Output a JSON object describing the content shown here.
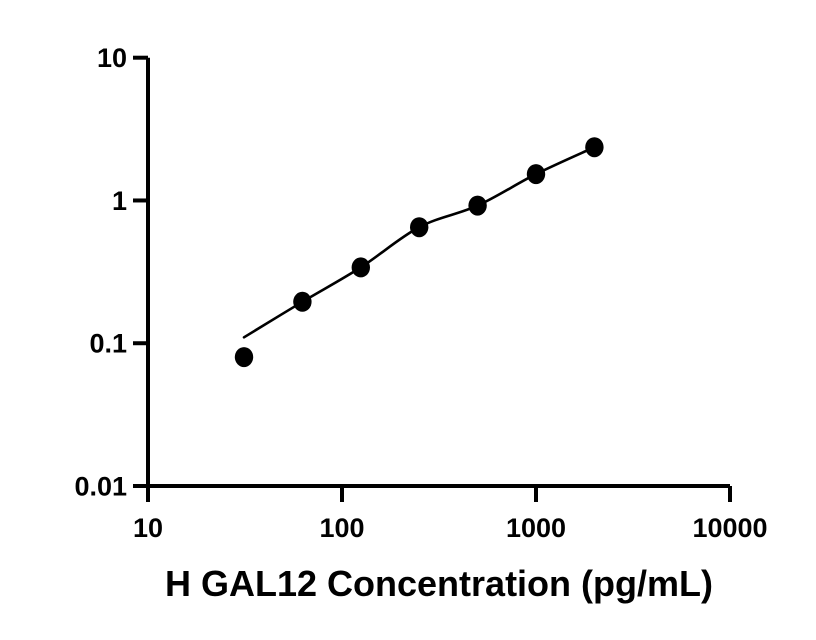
{
  "chart_data": {
    "type": "scatter",
    "title": "",
    "xlabel": "H GAL12 Concentration (pg/mL)",
    "ylabel": "",
    "x_scale": "log",
    "y_scale": "log",
    "xlim": [
      10,
      10000
    ],
    "ylim": [
      0.01,
      10
    ],
    "x_ticks": {
      "values": [
        10,
        100,
        1000,
        10000
      ],
      "labels": [
        "10",
        "100",
        "1000",
        "10000"
      ]
    },
    "y_ticks": {
      "values": [
        0.01,
        0.1,
        1,
        10
      ],
      "labels": [
        "0.01",
        "0.1",
        "1",
        "10"
      ]
    },
    "grid": false,
    "legend": "none",
    "series": [
      {
        "name": "standard-curve-points",
        "marker": "filled-circle",
        "color": "#000000",
        "x": [
          31.25,
          62.5,
          125,
          250,
          500,
          1000,
          2000
        ],
        "y": [
          0.08,
          0.195,
          0.34,
          0.65,
          0.92,
          1.53,
          2.36
        ]
      }
    ],
    "fit_curve": {
      "name": "4pl-fit-line",
      "color": "#000000",
      "x": [
        31.25,
        62.5,
        125,
        250,
        500,
        1000,
        2000
      ],
      "y": [
        0.11,
        0.195,
        0.34,
        0.65,
        0.92,
        1.53,
        2.36
      ]
    }
  },
  "colors": {
    "foreground": "#000000",
    "background": "#ffffff"
  }
}
